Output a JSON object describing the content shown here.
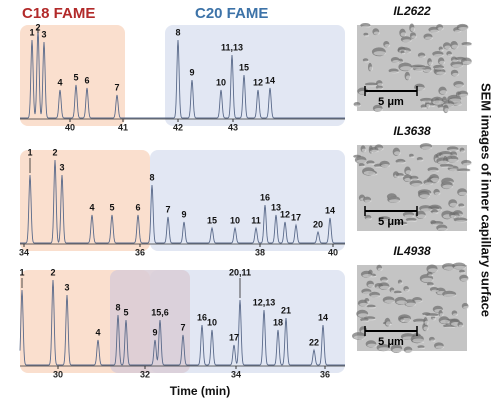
{
  "titles": [
    "C18 FAME",
    "C20 FAME"
  ],
  "x_label": "Time (min)",
  "side_caption": "SEM images of inner capillary surface",
  "panels": [
    {
      "peaks": [
        "1",
        "2",
        "3",
        "4",
        "5",
        "6",
        "7",
        "8",
        "9",
        "10",
        "11,13",
        "15",
        "12",
        "14"
      ],
      "ticks": [
        "40",
        "41",
        "42",
        "43"
      ],
      "sem": "IL2622",
      "scale": "5 μm"
    },
    {
      "peaks": [
        "1",
        "2",
        "3",
        "4",
        "5",
        "6",
        "8",
        "7",
        "9",
        "15",
        "10",
        "11",
        "16",
        "13",
        "12",
        "17",
        "20",
        "14"
      ],
      "ticks": [
        "34",
        "36",
        "38",
        "40"
      ],
      "sem": "IL3638",
      "scale": "5 μm"
    },
    {
      "peaks": [
        "1",
        "2",
        "3",
        "4",
        "8",
        "5",
        "9",
        "15,6",
        "7",
        "16",
        "10",
        "17",
        "20,11",
        "12,13",
        "18",
        "21",
        "22",
        "14"
      ],
      "ticks": [
        "30",
        "32",
        "34",
        "36"
      ],
      "sem": "IL4938",
      "scale": "5 μm"
    }
  ]
}
